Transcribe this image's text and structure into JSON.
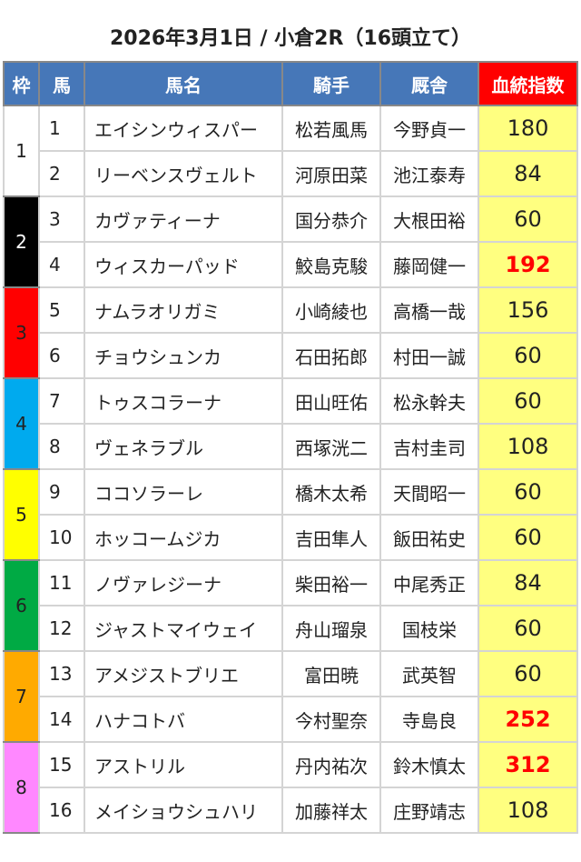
{
  "title": "2026年3月1日 / 小倉2R（16頭立て）",
  "headers": {
    "frame": "枠",
    "num": "馬",
    "name": "馬名",
    "jockey": "騎手",
    "trainer": "厩舎",
    "index": "血統指数"
  },
  "colors": {
    "header": "#4677b8",
    "index_header": "#ff0000",
    "value_bg": "#ffff80",
    "highlight": "#ff0000"
  },
  "frames": [
    {
      "label": "1",
      "color": "#ffffff",
      "text": "#222222"
    },
    {
      "label": "2",
      "color": "#000000",
      "text": "#ffffff"
    },
    {
      "label": "3",
      "color": "#ff0000",
      "text": "#222222"
    },
    {
      "label": "4",
      "color": "#00aaee",
      "text": "#222222"
    },
    {
      "label": "5",
      "color": "#ffff00",
      "text": "#222222"
    },
    {
      "label": "6",
      "color": "#00aa44",
      "text": "#222222"
    },
    {
      "label": "7",
      "color": "#ffaa00",
      "text": "#222222"
    },
    {
      "label": "8",
      "color": "#ff88ff",
      "text": "#222222"
    }
  ],
  "rows": [
    {
      "num": "1",
      "name": "エイシンウィスパー",
      "jockey": "松若風馬",
      "trainer": "今野貞一",
      "index": "180",
      "highlight": false
    },
    {
      "num": "2",
      "name": "リーベンスヴェルト",
      "jockey": "河原田菜",
      "trainer": "池江泰寿",
      "index": "84",
      "highlight": false
    },
    {
      "num": "3",
      "name": "カヴァティーナ",
      "jockey": "国分恭介",
      "trainer": "大根田裕",
      "index": "60",
      "highlight": false
    },
    {
      "num": "4",
      "name": "ウィスカーパッド",
      "jockey": "鮫島克駿",
      "trainer": "藤岡健一",
      "index": "192",
      "highlight": true
    },
    {
      "num": "5",
      "name": "ナムラオリガミ",
      "jockey": "小崎綾也",
      "trainer": "高橋一哉",
      "index": "156",
      "highlight": false
    },
    {
      "num": "6",
      "name": "チョウシュンカ",
      "jockey": "石田拓郎",
      "trainer": "村田一誠",
      "index": "60",
      "highlight": false
    },
    {
      "num": "7",
      "name": "トゥスコラーナ",
      "jockey": "田山旺佑",
      "trainer": "松永幹夫",
      "index": "60",
      "highlight": false
    },
    {
      "num": "8",
      "name": "ヴェネラブル",
      "jockey": "西塚洸二",
      "trainer": "吉村圭司",
      "index": "108",
      "highlight": false
    },
    {
      "num": "9",
      "name": "ココソラーレ",
      "jockey": "橋木太希",
      "trainer": "天間昭一",
      "index": "60",
      "highlight": false
    },
    {
      "num": "10",
      "name": "ホッコームジカ",
      "jockey": "吉田隼人",
      "trainer": "飯田祐史",
      "index": "60",
      "highlight": false
    },
    {
      "num": "11",
      "name": "ノヴァレジーナ",
      "jockey": "柴田裕一",
      "trainer": "中尾秀正",
      "index": "84",
      "highlight": false
    },
    {
      "num": "12",
      "name": "ジャストマイウェイ",
      "jockey": "舟山瑠泉",
      "trainer": "国枝栄",
      "index": "60",
      "highlight": false
    },
    {
      "num": "13",
      "name": "アメジストブリエ",
      "jockey": "富田暁",
      "trainer": "武英智",
      "index": "60",
      "highlight": false
    },
    {
      "num": "14",
      "name": "ハナコトバ",
      "jockey": "今村聖奈",
      "trainer": "寺島良",
      "index": "252",
      "highlight": true
    },
    {
      "num": "15",
      "name": "アストリル",
      "jockey": "丹内祐次",
      "trainer": "鈴木慎太",
      "index": "312",
      "highlight": true
    },
    {
      "num": "16",
      "name": "メイショウシュハリ",
      "jockey": "加藤祥太",
      "trainer": "庄野靖志",
      "index": "108",
      "highlight": false
    }
  ]
}
